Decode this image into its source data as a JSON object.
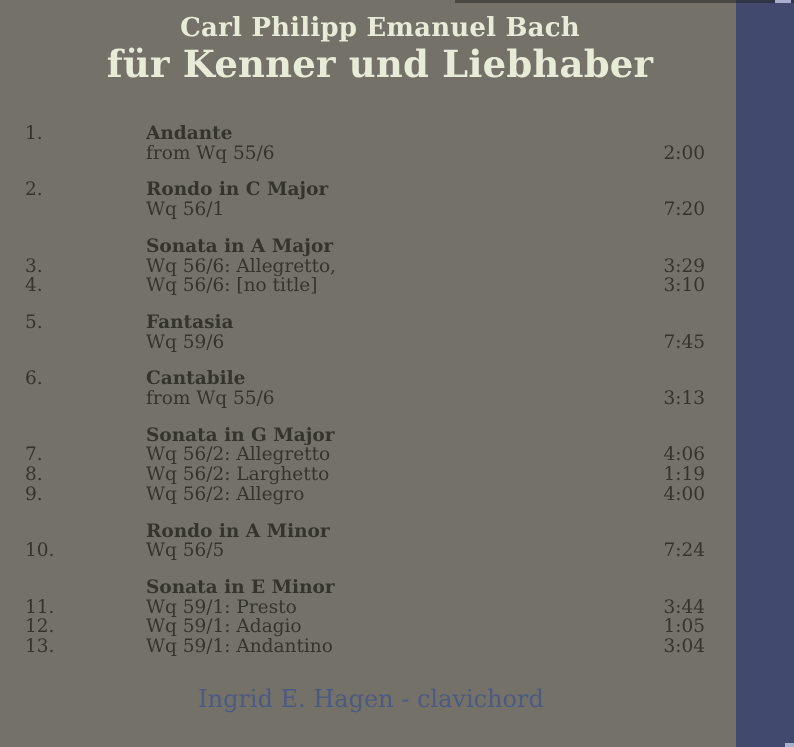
{
  "album": {
    "artist": "Carl Philipp Emanuel Bach",
    "title": "für Kenner und Liebhaber",
    "credit": "Ingrid E. Hagen - clavichord"
  },
  "colors": {
    "background": "#747268",
    "stripe": "#414A6E",
    "heading_text": "#E9EBD9",
    "track_text": "#35342C",
    "credit_text": "#4C5983"
  },
  "tracklist": {
    "sections": [
      {
        "lines": [
          {
            "num": "1.",
            "text": "Andante",
            "bold": true,
            "time": ""
          },
          {
            "num": "",
            "text": "from Wq 55/6",
            "bold": false,
            "time": "2:00"
          }
        ]
      },
      {
        "lines": [
          {
            "num": "2.",
            "text": "Rondo in C Major",
            "bold": true,
            "time": ""
          },
          {
            "num": "",
            "text": "Wq 56/1",
            "bold": false,
            "time": "7:20"
          }
        ]
      },
      {
        "lines": [
          {
            "num": "",
            "text": "Sonata in A Major",
            "bold": true,
            "time": ""
          },
          {
            "num": "3.",
            "text": "Wq 56/6: Allegretto,",
            "bold": false,
            "time": "3:29"
          },
          {
            "num": "4.",
            "text": "Wq 56/6: [no title]",
            "bold": false,
            "time": "3:10"
          }
        ]
      },
      {
        "lines": [
          {
            "num": "5.",
            "text": "Fantasia",
            "bold": true,
            "time": ""
          },
          {
            "num": "",
            "text": "Wq 59/6",
            "bold": false,
            "time": "7:45"
          }
        ]
      },
      {
        "lines": [
          {
            "num": "6.",
            "text": "Cantabile",
            "bold": true,
            "time": ""
          },
          {
            "num": "",
            "text": "from Wq 55/6",
            "bold": false,
            "time": "3:13"
          }
        ]
      },
      {
        "lines": [
          {
            "num": "",
            "text": "Sonata in G Major",
            "bold": true,
            "time": ""
          },
          {
            "num": "7.",
            "text": "Wq 56/2: Allegretto",
            "bold": false,
            "time": "4:06"
          },
          {
            "num": "8.",
            "text": "Wq 56/2: Larghetto",
            "bold": false,
            "time": "1:19"
          },
          {
            "num": "9.",
            "text": "Wq 56/2: Allegro",
            "bold": false,
            "time": "4:00"
          }
        ]
      },
      {
        "lines": [
          {
            "num": "",
            "text": "Rondo in A Minor",
            "bold": true,
            "time": ""
          },
          {
            "num": "10.",
            "text": "Wq 56/5",
            "bold": false,
            "time": "7:24"
          }
        ]
      },
      {
        "lines": [
          {
            "num": "",
            "text": "Sonata in E Minor",
            "bold": true,
            "time": ""
          },
          {
            "num": "11.",
            "text": "Wq 59/1: Presto",
            "bold": false,
            "time": "3:44"
          },
          {
            "num": "12.",
            "text": "Wq 59/1: Adagio",
            "bold": false,
            "time": "1:05"
          },
          {
            "num": "13.",
            "text": "Wq 59/1: Andantino",
            "bold": false,
            "time": "3:04"
          }
        ]
      }
    ]
  }
}
